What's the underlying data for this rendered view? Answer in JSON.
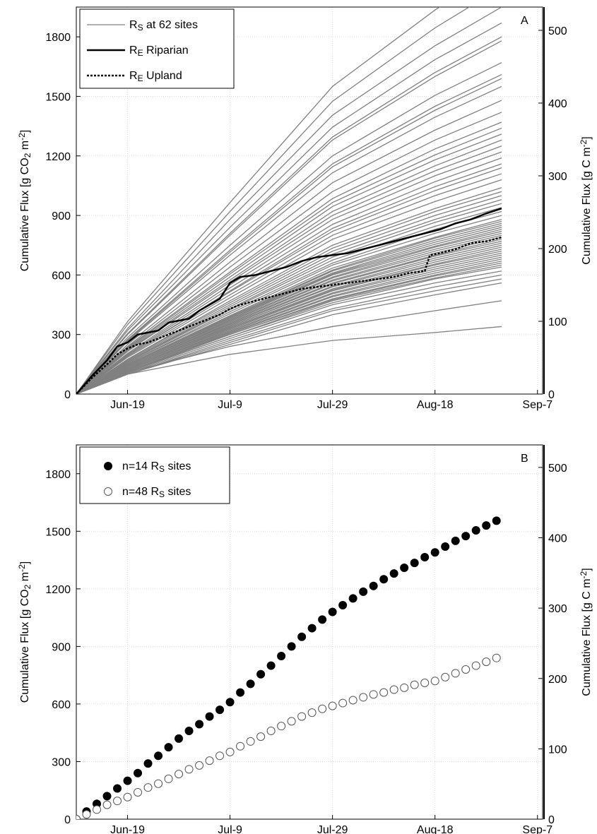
{
  "chart_data": [
    {
      "type": "line",
      "panel_label": "A",
      "ylabel": [
        {
          "text": "Cumulative Flux [g CO"
        },
        {
          "text": "2",
          "sub": true
        },
        {
          "text": " m"
        },
        {
          "text": "-2",
          "sup": true
        },
        {
          "text": "]"
        }
      ],
      "y2label": [
        {
          "text": "Cumulative Flux [g C m"
        },
        {
          "text": "-2",
          "sup": true
        },
        {
          "text": "]"
        }
      ],
      "xlim": [
        160,
        251
      ],
      "xticks": [
        {
          "value": 170,
          "label": "Jun-19"
        },
        {
          "value": 190,
          "label": "Jul-9"
        },
        {
          "value": 210,
          "label": "Jul-29"
        },
        {
          "value": 230,
          "label": "Aug-18"
        },
        {
          "value": 250,
          "label": "Sep-7"
        }
      ],
      "ylim": [
        0,
        1950
      ],
      "yticks": [
        0,
        300,
        600,
        900,
        1200,
        1500,
        1800
      ],
      "y2lim": [
        0,
        532
      ],
      "y2ticks": [
        0,
        100,
        200,
        300,
        400,
        500
      ],
      "grid": true,
      "legend": "upper left",
      "site_series": {
        "name": [
          {
            "text": "R"
          },
          {
            "text": "S",
            "sub": true
          },
          {
            "text": " at 62 sites"
          }
        ],
        "color": "#808080",
        "x": [
          160,
          170,
          190,
          210,
          230,
          243
        ],
        "lines": [
          [
            0,
            100,
            200,
            270,
            310,
            340
          ],
          [
            0,
            110,
            240,
            340,
            420,
            470
          ],
          [
            0,
            100,
            250,
            400,
            500,
            560
          ],
          [
            0,
            100,
            260,
            420,
            520,
            580
          ],
          [
            0,
            100,
            270,
            430,
            540,
            600
          ],
          [
            0,
            105,
            280,
            450,
            560,
            620
          ],
          [
            0,
            110,
            290,
            460,
            580,
            640
          ],
          [
            0,
            110,
            290,
            470,
            585,
            650
          ],
          [
            0,
            110,
            300,
            475,
            595,
            660
          ],
          [
            0,
            115,
            300,
            480,
            600,
            670
          ],
          [
            0,
            115,
            305,
            490,
            610,
            680
          ],
          [
            0,
            115,
            310,
            495,
            620,
            690
          ],
          [
            0,
            120,
            315,
            505,
            630,
            700
          ],
          [
            0,
            120,
            320,
            510,
            640,
            710
          ],
          [
            0,
            120,
            325,
            520,
            650,
            720
          ],
          [
            0,
            125,
            330,
            525,
            655,
            730
          ],
          [
            0,
            125,
            335,
            530,
            665,
            740
          ],
          [
            0,
            130,
            340,
            540,
            675,
            750
          ],
          [
            0,
            130,
            340,
            545,
            685,
            760
          ],
          [
            0,
            130,
            345,
            555,
            695,
            770
          ],
          [
            0,
            135,
            350,
            560,
            700,
            780
          ],
          [
            0,
            135,
            355,
            570,
            710,
            790
          ],
          [
            0,
            135,
            360,
            575,
            720,
            800
          ],
          [
            0,
            140,
            365,
            585,
            730,
            810
          ],
          [
            0,
            140,
            370,
            590,
            740,
            820
          ],
          [
            0,
            140,
            375,
            600,
            745,
            830
          ],
          [
            0,
            145,
            380,
            605,
            755,
            840
          ],
          [
            0,
            145,
            385,
            610,
            765,
            850
          ],
          [
            0,
            145,
            385,
            620,
            775,
            860
          ],
          [
            0,
            150,
            390,
            625,
            785,
            870
          ],
          [
            0,
            150,
            395,
            635,
            790,
            880
          ],
          [
            0,
            155,
            405,
            650,
            810,
            900
          ],
          [
            0,
            155,
            415,
            660,
            830,
            920
          ],
          [
            0,
            160,
            425,
            675,
            845,
            940
          ],
          [
            0,
            165,
            430,
            690,
            865,
            960
          ],
          [
            0,
            165,
            440,
            705,
            880,
            980
          ],
          [
            0,
            170,
            450,
            720,
            900,
            1000
          ],
          [
            0,
            175,
            460,
            735,
            920,
            1020
          ],
          [
            0,
            175,
            470,
            750,
            935,
            1040
          ],
          [
            0,
            185,
            485,
            780,
            970,
            1080
          ],
          [
            0,
            190,
            500,
            800,
            1000,
            1110
          ],
          [
            0,
            195,
            515,
            820,
            1025,
            1140
          ],
          [
            0,
            195,
            520,
            835,
            1045,
            1160
          ],
          [
            0,
            200,
            535,
            855,
            1070,
            1190
          ],
          [
            0,
            205,
            550,
            880,
            1100,
            1220
          ],
          [
            0,
            215,
            565,
            900,
            1125,
            1250
          ],
          [
            0,
            220,
            575,
            920,
            1150,
            1280
          ],
          [
            0,
            225,
            590,
            945,
            1180,
            1310
          ],
          [
            0,
            230,
            605,
            965,
            1205,
            1340
          ],
          [
            0,
            235,
            615,
            985,
            1235,
            1370
          ],
          [
            0,
            240,
            640,
            1020,
            1280,
            1420
          ],
          [
            0,
            250,
            665,
            1065,
            1330,
            1480
          ],
          [
            0,
            265,
            700,
            1115,
            1395,
            1550
          ],
          [
            0,
            270,
            715,
            1145,
            1430,
            1590
          ],
          [
            0,
            275,
            725,
            1160,
            1450,
            1610
          ],
          [
            0,
            285,
            750,
            1200,
            1505,
            1670
          ],
          [
            0,
            300,
            800,
            1280,
            1600,
            1780
          ],
          [
            0,
            305,
            810,
            1295,
            1620,
            1800
          ],
          [
            0,
            320,
            840,
            1345,
            1685,
            1870
          ],
          [
            0,
            330,
            880,
            1405,
            1755,
            1950
          ],
          [
            0,
            350,
            920,
            1475,
            1845,
            2050
          ],
          [
            0,
            365,
            965,
            1550,
            1935,
            2150
          ]
        ]
      },
      "series": [
        {
          "name": [
            {
              "text": "R"
            },
            {
              "text": "E",
              "sub": true
            },
            {
              "text": " Riparian"
            }
          ],
          "color": "#000000",
          "dash": false,
          "x": [
            160,
            163,
            166,
            168,
            170,
            172,
            174,
            176,
            178,
            180,
            182,
            184,
            186,
            188,
            190,
            192,
            195,
            198,
            201,
            204,
            207,
            210,
            213,
            216,
            219,
            222,
            225,
            228,
            231,
            234,
            237,
            240,
            243
          ],
          "values": [
            0,
            90,
            170,
            240,
            260,
            300,
            310,
            320,
            360,
            370,
            380,
            420,
            450,
            480,
            560,
            590,
            600,
            620,
            640,
            670,
            690,
            700,
            710,
            730,
            750,
            770,
            790,
            810,
            830,
            860,
            880,
            910,
            935
          ]
        },
        {
          "name": [
            {
              "text": "R"
            },
            {
              "text": "E",
              "sub": true
            },
            {
              "text": " Upland"
            }
          ],
          "color": "#000000",
          "dash": true,
          "x": [
            160,
            163,
            166,
            168,
            170,
            172,
            174,
            176,
            178,
            180,
            182,
            184,
            186,
            188,
            190,
            192,
            195,
            198,
            201,
            204,
            207,
            210,
            213,
            216,
            219,
            222,
            225,
            228,
            229,
            231,
            234,
            237,
            240,
            243
          ],
          "values": [
            0,
            80,
            150,
            200,
            230,
            250,
            260,
            280,
            300,
            320,
            340,
            360,
            380,
            400,
            430,
            450,
            470,
            490,
            510,
            530,
            540,
            550,
            560,
            570,
            580,
            590,
            610,
            620,
            700,
            710,
            730,
            760,
            770,
            790
          ]
        }
      ]
    },
    {
      "type": "scatter",
      "panel_label": "B",
      "ylabel": [
        {
          "text": "Cumulative Flux [g CO"
        },
        {
          "text": "2",
          "sub": true
        },
        {
          "text": " m"
        },
        {
          "text": "-2",
          "sup": true
        },
        {
          "text": "]"
        }
      ],
      "y2label": [
        {
          "text": "Cumulative Flux [g C m"
        },
        {
          "text": "-2",
          "sup": true
        },
        {
          "text": "]"
        }
      ],
      "xlim": [
        160,
        251
      ],
      "xticks": [
        {
          "value": 170,
          "label": "Jun-19"
        },
        {
          "value": 190,
          "label": "Jul-9"
        },
        {
          "value": 210,
          "label": "Jul-29"
        },
        {
          "value": 230,
          "label": "Aug-18"
        },
        {
          "value": 250,
          "label": "Sep-7"
        }
      ],
      "ylim": [
        0,
        1950
      ],
      "yticks": [
        0,
        300,
        600,
        900,
        1200,
        1500,
        1800
      ],
      "y2lim": [
        0,
        532
      ],
      "y2ticks": [
        0,
        100,
        200,
        300,
        400,
        500
      ],
      "grid": true,
      "legend": "upper left",
      "series": [
        {
          "name": [
            {
              "text": "n=14 R"
            },
            {
              "text": "S",
              "sub": true
            },
            {
              "text": " sites"
            }
          ],
          "color": "#000000",
          "filled": true,
          "x": [
            160,
            162,
            164,
            166,
            168,
            170,
            172,
            174,
            176,
            178,
            180,
            182,
            184,
            186,
            188,
            190,
            192,
            194,
            196,
            198,
            200,
            202,
            204,
            206,
            208,
            210,
            212,
            214,
            216,
            218,
            220,
            222,
            224,
            226,
            228,
            230,
            232,
            234,
            236,
            238,
            240,
            242
          ],
          "values": [
            0,
            40,
            80,
            120,
            160,
            200,
            240,
            290,
            330,
            375,
            420,
            460,
            495,
            535,
            570,
            610,
            660,
            705,
            755,
            800,
            850,
            900,
            950,
            995,
            1040,
            1080,
            1115,
            1150,
            1185,
            1215,
            1250,
            1280,
            1310,
            1335,
            1365,
            1390,
            1420,
            1450,
            1475,
            1505,
            1530,
            1555
          ]
        },
        {
          "name": [
            {
              "text": "n=48 R"
            },
            {
              "text": "S",
              "sub": true
            },
            {
              "text": " sites"
            }
          ],
          "color": "#555555",
          "filled": false,
          "x": [
            160,
            162,
            164,
            166,
            168,
            170,
            172,
            174,
            176,
            178,
            180,
            182,
            184,
            186,
            188,
            190,
            192,
            194,
            196,
            198,
            200,
            202,
            204,
            206,
            208,
            210,
            212,
            214,
            216,
            218,
            220,
            222,
            224,
            226,
            228,
            230,
            232,
            234,
            236,
            238,
            240,
            242
          ],
          "values": [
            0,
            25,
            50,
            75,
            95,
            115,
            140,
            165,
            185,
            210,
            235,
            260,
            280,
            305,
            330,
            350,
            380,
            405,
            430,
            460,
            485,
            510,
            535,
            555,
            575,
            590,
            605,
            620,
            635,
            650,
            660,
            675,
            685,
            700,
            710,
            720,
            740,
            760,
            780,
            800,
            820,
            840
          ]
        }
      ]
    }
  ]
}
